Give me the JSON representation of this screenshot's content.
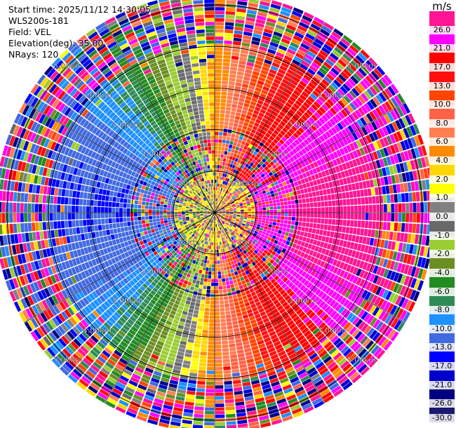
{
  "info": {
    "start_time": "Start time: 2025/11/12 14:30:05",
    "station": "WLS200s-181",
    "field": "Field: VEL",
    "elevation": "Elevation(deg): 35.00",
    "nrays": "NRays: 120"
  },
  "chart_data": {
    "type": "heatmap",
    "projection": "polar-ppi",
    "nrays": 120,
    "range_rings_km": [
      1.0,
      2.0,
      3.0,
      4.0,
      5.0
    ],
    "ring_labels": [
      "1.00km",
      "2.00km",
      "3.00km",
      "4.00km",
      "5.00km"
    ],
    "max_range_km": 5.3,
    "radial_velocity_model": "approx 20*cos(azimuth-90deg) m/s (positive to east), noisy near center and beyond 4 km",
    "colorbar": {
      "unit": "m/s",
      "ticks": [
        "26.0",
        "21.0",
        "17.0",
        "13.0",
        "10.0",
        "8.0",
        "6.0",
        "4.0",
        "2.0",
        "1.0",
        "0.0",
        "-1.0",
        "-2.0",
        "-4.0",
        "-6.0",
        "-8.0",
        "-10.0",
        "-13.0",
        "-17.0",
        "-21.0",
        "-26.0",
        "-30.0"
      ],
      "colors": [
        "#ff1493",
        "#ff00ff",
        "#ff0000",
        "#ff1010",
        "#ff4500",
        "#ff6347",
        "#ff7f50",
        "#ff8c00",
        "#ffd700",
        "#ffff00",
        "#808080",
        "#696969",
        "#9acd32",
        "#6b8e23",
        "#228b22",
        "#2e8b57",
        "#1e90ff",
        "#4169e1",
        "#0000ff",
        "#0000cd",
        "#000080",
        "#191970"
      ]
    }
  }
}
